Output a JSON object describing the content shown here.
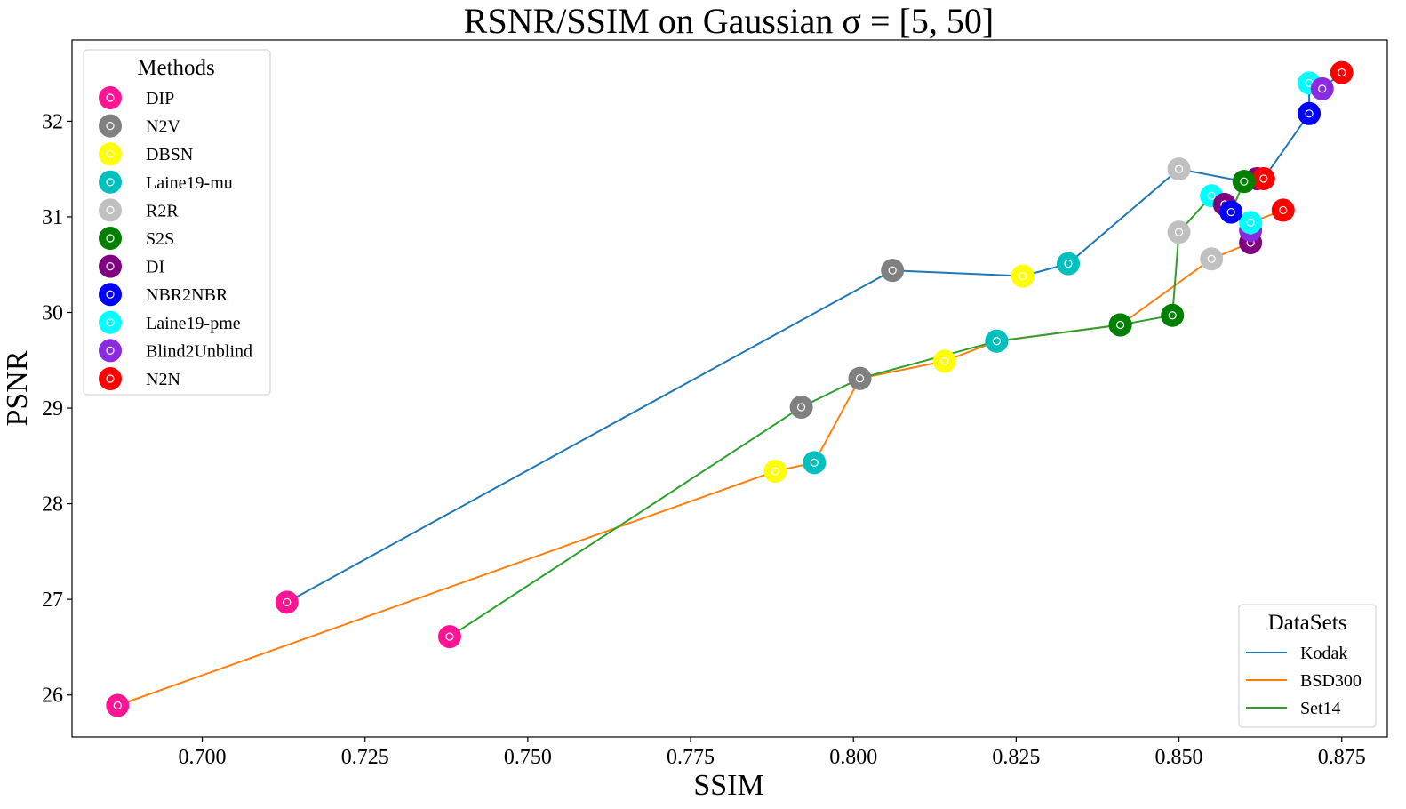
{
  "chart_data": {
    "type": "scatter",
    "title": "RSNR/SSIM on Gaussian σ = [5, 50]",
    "xlabel": "SSIM",
    "ylabel": "PSNR",
    "xlim": [
      0.68,
      0.882
    ],
    "ylim": [
      25.56,
      32.85
    ],
    "xticks": [
      "0.700",
      "0.725",
      "0.750",
      "0.775",
      "0.800",
      "0.825",
      "0.850",
      "0.875"
    ],
    "yticks": [
      "26",
      "27",
      "28",
      "29",
      "30",
      "31",
      "32"
    ],
    "grid": false,
    "methods_legend": {
      "title": "Methods",
      "placement": "top-left",
      "items": [
        {
          "name": "DIP",
          "color": "#FF1493"
        },
        {
          "name": "N2V",
          "color": "#808080"
        },
        {
          "name": "DBSN",
          "color": "#FFFF00"
        },
        {
          "name": "Laine19-mu",
          "color": "#00BFBF"
        },
        {
          "name": "R2R",
          "color": "#C0C0C0"
        },
        {
          "name": "S2S",
          "color": "#008000"
        },
        {
          "name": "DI",
          "color": "#800080"
        },
        {
          "name": "NBR2NBR",
          "color": "#0000FF"
        },
        {
          "name": "Laine19-pme",
          "color": "#00FFFF"
        },
        {
          "name": "Blind2Unblind",
          "color": "#8A2BE2"
        },
        {
          "name": "N2N",
          "color": "#FF0000"
        }
      ]
    },
    "datasets_legend": {
      "title": "DataSets",
      "placement": "bottom-right"
    },
    "series": [
      {
        "name": "Kodak",
        "color": "#1f77b4",
        "points": [
          {
            "method": "DIP",
            "x": 0.713,
            "y": 26.97
          },
          {
            "method": "N2V",
            "x": 0.806,
            "y": 30.44
          },
          {
            "method": "DBSN",
            "x": 0.826,
            "y": 30.38
          },
          {
            "method": "Laine19-mu",
            "x": 0.833,
            "y": 30.51
          },
          {
            "method": "R2R",
            "x": 0.85,
            "y": 31.5
          },
          {
            "method": "S2S",
            "x": 0.86,
            "y": 31.37
          },
          {
            "method": "DI",
            "x": 0.862,
            "y": 31.4
          },
          {
            "method": "N2N",
            "x": 0.863,
            "y": 31.4
          },
          {
            "method": "NBR2NBR",
            "x": 0.87,
            "y": 32.08
          },
          {
            "method": "Laine19-pme",
            "x": 0.87,
            "y": 32.4
          },
          {
            "method": "Blind2Unblind",
            "x": 0.872,
            "y": 32.34
          },
          {
            "method": "N2N",
            "x": 0.875,
            "y": 32.51
          }
        ]
      },
      {
        "name": "BSD300",
        "color": "#ff7f0e",
        "points": [
          {
            "method": "DIP",
            "x": 0.687,
            "y": 25.89
          },
          {
            "method": "DBSN",
            "x": 0.788,
            "y": 28.34
          },
          {
            "method": "Laine19-mu",
            "x": 0.794,
            "y": 28.43
          },
          {
            "method": "N2V",
            "x": 0.801,
            "y": 29.31
          },
          {
            "method": "DBSN",
            "x": 0.814,
            "y": 29.49
          },
          {
            "method": "Laine19-mu",
            "x": 0.822,
            "y": 29.7
          },
          {
            "method": "S2S",
            "x": 0.841,
            "y": 29.87
          },
          {
            "method": "R2R",
            "x": 0.855,
            "y": 30.56
          },
          {
            "method": "DI",
            "x": 0.861,
            "y": 30.73
          },
          {
            "method": "Blind2Unblind",
            "x": 0.861,
            "y": 30.86
          },
          {
            "method": "Laine19-pme",
            "x": 0.861,
            "y": 30.94
          },
          {
            "method": "N2N",
            "x": 0.866,
            "y": 31.07
          }
        ]
      },
      {
        "name": "Set14",
        "color": "#2ca02c",
        "points": [
          {
            "method": "DIP",
            "x": 0.738,
            "y": 26.61
          },
          {
            "method": "N2V",
            "x": 0.792,
            "y": 29.01
          },
          {
            "method": "N2V",
            "x": 0.801,
            "y": 29.31
          },
          {
            "method": "Laine19-mu",
            "x": 0.822,
            "y": 29.7
          },
          {
            "method": "S2S",
            "x": 0.841,
            "y": 29.87
          },
          {
            "method": "S2S",
            "x": 0.849,
            "y": 29.97
          },
          {
            "method": "R2R",
            "x": 0.85,
            "y": 30.84
          },
          {
            "method": "Laine19-pme",
            "x": 0.855,
            "y": 31.22
          },
          {
            "method": "Blind2Unblind",
            "x": 0.857,
            "y": 31.13
          },
          {
            "method": "DI",
            "x": 0.857,
            "y": 31.13
          },
          {
            "method": "NBR2NBR",
            "x": 0.858,
            "y": 31.05
          },
          {
            "method": "S2S",
            "x": 0.86,
            "y": 31.37
          }
        ]
      }
    ]
  }
}
